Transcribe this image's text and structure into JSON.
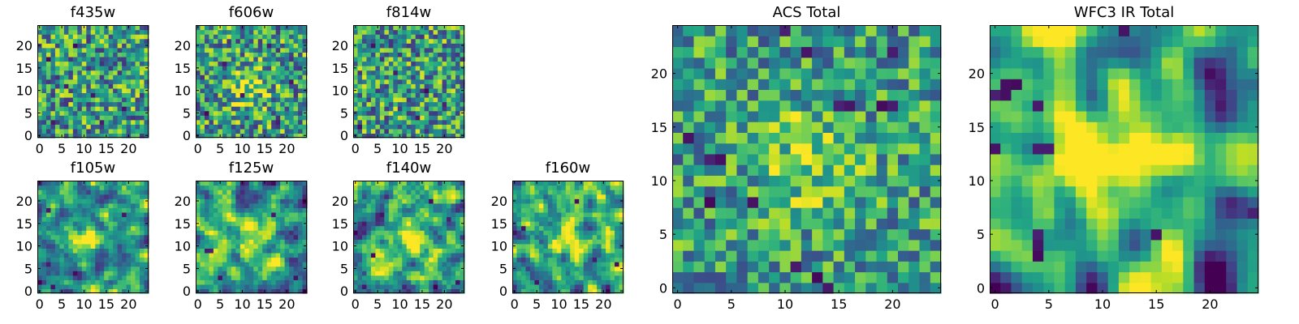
{
  "chart_data": [
    {
      "type": "heatmap",
      "title": "f435w",
      "colormap": "viridis",
      "grid": false,
      "xlim": [
        0,
        24
      ],
      "ylim": [
        0,
        24
      ],
      "xticks": [
        "0",
        "5",
        "10",
        "15",
        "20"
      ],
      "yticks": [
        "0",
        "5",
        "10",
        "15",
        "20"
      ],
      "size": [
        25,
        25
      ],
      "seed": 11,
      "smooth": 0,
      "contrast": 1.0,
      "blobs": [],
      "dark_pixels": [
        [
          3,
          3
        ],
        [
          6,
          11
        ],
        [
          8,
          20
        ],
        [
          14,
          3
        ],
        [
          19,
          6
        ],
        [
          2,
          17
        ],
        [
          12,
          9
        ]
      ]
    },
    {
      "type": "heatmap",
      "title": "f606w",
      "colormap": "viridis",
      "grid": false,
      "xlim": [
        0,
        24
      ],
      "ylim": [
        0,
        24
      ],
      "xticks": [
        "0",
        "5",
        "10",
        "15",
        "20"
      ],
      "yticks": [
        "0",
        "5",
        "10",
        "15",
        "20"
      ],
      "size": [
        25,
        25
      ],
      "seed": 23,
      "smooth": 0,
      "contrast": 1.0,
      "blobs": [
        [
          11,
          11,
          3.0,
          0.35
        ]
      ],
      "dark_pixels": [
        [
          2,
          5
        ],
        [
          10,
          9
        ],
        [
          18,
          3
        ],
        [
          21,
          12
        ],
        [
          6,
          16
        ],
        [
          16,
          20
        ]
      ]
    },
    {
      "type": "heatmap",
      "title": "f814w",
      "colormap": "viridis",
      "grid": false,
      "xlim": [
        0,
        24
      ],
      "ylim": [
        0,
        24
      ],
      "xticks": [
        "0",
        "5",
        "10",
        "15",
        "20"
      ],
      "yticks": [
        "0",
        "5",
        "10",
        "15",
        "20"
      ],
      "size": [
        25,
        25
      ],
      "seed": 37,
      "smooth": 0,
      "contrast": 1.0,
      "blobs": [],
      "dark_pixels": [
        [
          1,
          2
        ],
        [
          14,
          4
        ],
        [
          20,
          7
        ],
        [
          9,
          14
        ],
        [
          16,
          10
        ],
        [
          4,
          20
        ]
      ]
    },
    {
      "type": "heatmap",
      "title": "f105w",
      "colormap": "viridis",
      "grid": false,
      "xlim": [
        0,
        24
      ],
      "ylim": [
        0,
        24
      ],
      "xticks": [
        "0",
        "5",
        "10",
        "15",
        "20"
      ],
      "yticks": [
        "0",
        "5",
        "10",
        "15",
        "20"
      ],
      "size": [
        25,
        25
      ],
      "seed": 41,
      "smooth": 1,
      "contrast": 1.4,
      "blobs": [
        [
          11,
          12,
          2.5,
          0.5
        ]
      ],
      "dark_pixels": [
        [
          3,
          1
        ],
        [
          8,
          4
        ],
        [
          19,
          17
        ],
        [
          2,
          18
        ]
      ]
    },
    {
      "type": "heatmap",
      "title": "f125w",
      "colormap": "viridis",
      "grid": false,
      "xlim": [
        0,
        24
      ],
      "ylim": [
        0,
        24
      ],
      "xticks": [
        "0",
        "5",
        "10",
        "15",
        "20"
      ],
      "yticks": [
        "0",
        "5",
        "10",
        "15",
        "20"
      ],
      "size": [
        25,
        25
      ],
      "seed": 53,
      "smooth": 1,
      "contrast": 1.4,
      "blobs": [
        [
          13,
          11,
          3.0,
          0.3
        ]
      ],
      "dark_pixels": [
        [
          2,
          9
        ],
        [
          3,
          9
        ],
        [
          5,
          3
        ],
        [
          22,
          3
        ],
        [
          17,
          17
        ]
      ]
    },
    {
      "type": "heatmap",
      "title": "f140w",
      "colormap": "viridis",
      "grid": false,
      "xlim": [
        0,
        24
      ],
      "ylim": [
        0,
        24
      ],
      "xticks": [
        "0",
        "5",
        "10",
        "15",
        "20"
      ],
      "yticks": [
        "0",
        "5",
        "10",
        "15",
        "20"
      ],
      "size": [
        25,
        25
      ],
      "seed": 67,
      "smooth": 1,
      "contrast": 1.4,
      "blobs": [
        [
          12,
          12,
          3.0,
          0.35
        ]
      ],
      "dark_pixels": [
        [
          4,
          8
        ],
        [
          21,
          16
        ],
        [
          23,
          2
        ],
        [
          2,
          1
        ],
        [
          17,
          20
        ]
      ]
    },
    {
      "type": "heatmap",
      "title": "f160w",
      "colormap": "viridis",
      "grid": false,
      "xlim": [
        0,
        24
      ],
      "ylim": [
        0,
        24
      ],
      "xticks": [
        "0",
        "5",
        "10",
        "15",
        "20"
      ],
      "yticks": [
        "0",
        "5",
        "10",
        "15",
        "20"
      ],
      "size": [
        25,
        25
      ],
      "seed": 79,
      "smooth": 1,
      "contrast": 1.5,
      "blobs": [
        [
          12,
          12,
          3.0,
          0.4
        ]
      ],
      "dark_pixels": [
        [
          5,
          2
        ],
        [
          18,
          7
        ],
        [
          23,
          6
        ],
        [
          2,
          14
        ],
        [
          14,
          20
        ]
      ]
    },
    {
      "type": "heatmap",
      "title": "ACS Total",
      "colormap": "viridis",
      "grid": false,
      "xlim": [
        0,
        24
      ],
      "ylim": [
        0,
        24
      ],
      "xticks": [
        "0",
        "5",
        "10",
        "15",
        "20"
      ],
      "yticks": [
        "0",
        "5",
        "10",
        "15",
        "20"
      ],
      "size": [
        25,
        25
      ],
      "seed": 97,
      "smooth": 0,
      "contrast": 0.8,
      "blobs": [
        [
          12,
          12,
          3.5,
          0.25
        ]
      ],
      "dark_pixels": [
        [
          3,
          12
        ],
        [
          4,
          12
        ],
        [
          15,
          17
        ],
        [
          16,
          17
        ],
        [
          19,
          17
        ],
        [
          20,
          17
        ],
        [
          7,
          8
        ],
        [
          11,
          2
        ],
        [
          14,
          0
        ],
        [
          13,
          1
        ],
        [
          1,
          14
        ],
        [
          12,
          22
        ],
        [
          10,
          24
        ],
        [
          3,
          8
        ],
        [
          20,
          22
        ]
      ]
    },
    {
      "type": "heatmap",
      "title": "WFC3 IR Total",
      "colormap": "viridis",
      "grid": false,
      "xlim": [
        0,
        24
      ],
      "ylim": [
        0,
        24
      ],
      "xticks": [
        "0",
        "5",
        "10",
        "15",
        "20"
      ],
      "yticks": [
        "0",
        "5",
        "10",
        "15",
        "20"
      ],
      "size": [
        25,
        25
      ],
      "seed": 131,
      "smooth": 2,
      "contrast": 1.8,
      "blobs": [
        [
          12,
          12,
          3.5,
          0.55
        ],
        [
          15,
          14,
          2.5,
          0.25
        ]
      ],
      "dark_pixels": [
        [
          0,
          18
        ],
        [
          1,
          18
        ],
        [
          2,
          19
        ],
        [
          1,
          19
        ],
        [
          4,
          4
        ],
        [
          4,
          3
        ],
        [
          4,
          5
        ],
        [
          5,
          13
        ],
        [
          4,
          13
        ],
        [
          0,
          13
        ],
        [
          15,
          5
        ],
        [
          24,
          7
        ],
        [
          4,
          17
        ],
        [
          12,
          24
        ]
      ]
    }
  ]
}
